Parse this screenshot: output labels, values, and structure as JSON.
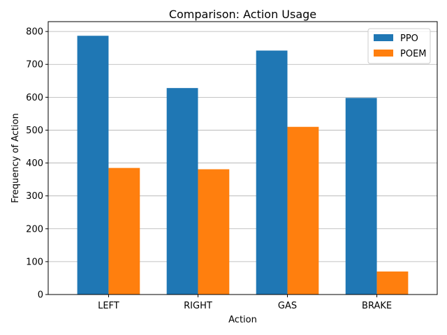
{
  "chart_data": {
    "type": "bar",
    "title": "Comparison: Action Usage",
    "xlabel": "Action",
    "ylabel": "Frequency of Action",
    "categories": [
      "LEFT",
      "RIGHT",
      "GAS",
      "BRAKE"
    ],
    "series": [
      {
        "name": "PPO",
        "values": [
          787,
          628,
          742,
          598
        ],
        "color": "#1f77b4"
      },
      {
        "name": "POEM",
        "values": [
          385,
          381,
          510,
          70
        ],
        "color": "#ff7f0e"
      }
    ],
    "ylim": [
      0,
      830
    ],
    "yticks": [
      0,
      100,
      200,
      300,
      400,
      500,
      600,
      700,
      800
    ],
    "grid": "horizontal",
    "legend_position": "top-right"
  }
}
